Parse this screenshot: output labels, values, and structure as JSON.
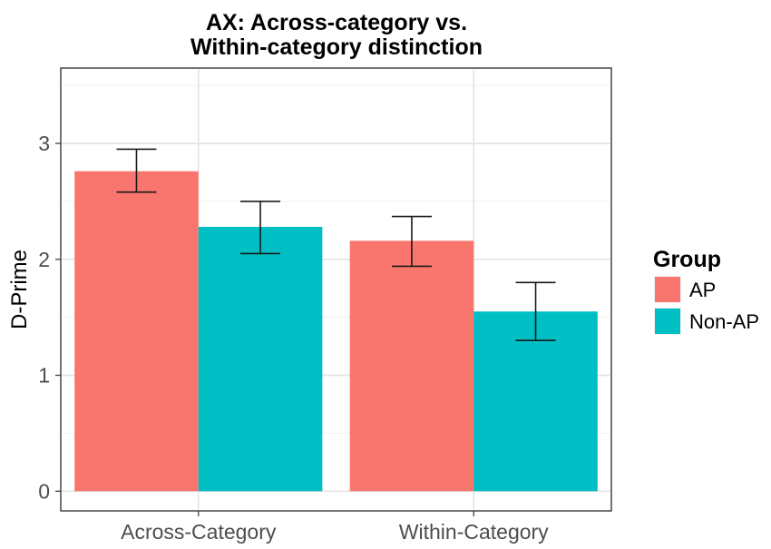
{
  "chart_data": {
    "type": "bar",
    "title": [
      "AX: Across-category vs.",
      "Within-category distinction"
    ],
    "xlabel": "",
    "ylabel": "D-Prime",
    "categories": [
      "Across-Category",
      "Within-Category"
    ],
    "series": [
      {
        "name": "AP",
        "color": "#F8766D",
        "values": [
          2.76,
          2.16
        ],
        "error_low": [
          2.58,
          1.94
        ],
        "error_high": [
          2.95,
          2.37
        ]
      },
      {
        "name": "Non-AP",
        "color": "#00BFC4",
        "values": [
          2.28,
          1.55
        ],
        "error_low": [
          2.05,
          1.3
        ],
        "error_high": [
          2.5,
          1.8
        ]
      }
    ],
    "ylim": [
      -0.17,
      3.65
    ],
    "yticks": [
      0,
      1,
      2,
      3
    ],
    "grid": true,
    "legend": {
      "title": "Group",
      "position": "right"
    }
  }
}
